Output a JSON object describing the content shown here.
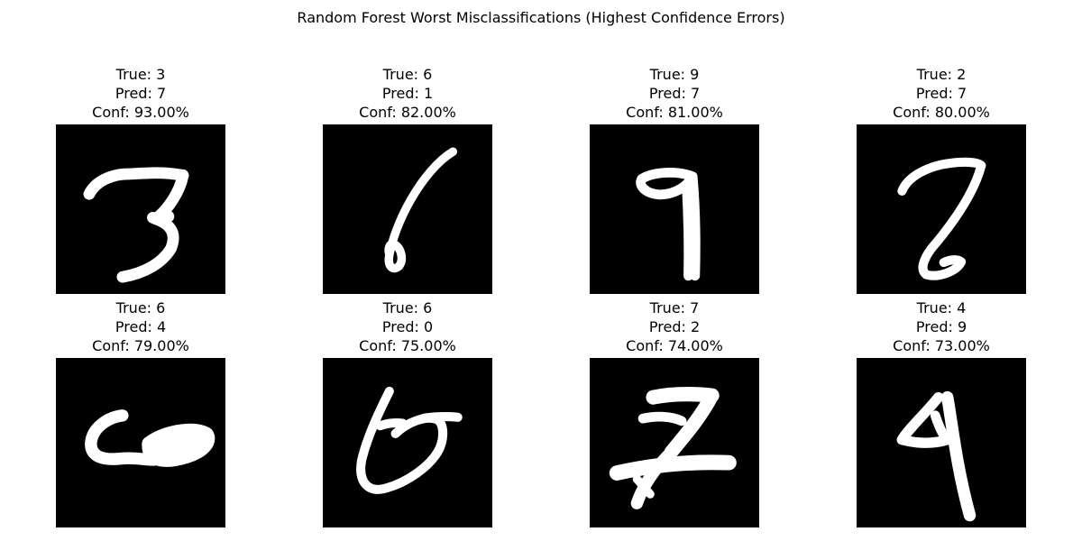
{
  "figure": {
    "title": "Random Forest Worst Misclassifications (Highest Confidence Errors)"
  },
  "samples": [
    {
      "true_label": "True: 3",
      "pred_label": "Pred: 7",
      "conf_label": "Conf: 93.00%",
      "image": "handwritten digit 3"
    },
    {
      "true_label": "True: 6",
      "pred_label": "Pred: 1",
      "conf_label": "Conf: 82.00%",
      "image": "handwritten digit 6"
    },
    {
      "true_label": "True: 9",
      "pred_label": "Pred: 7",
      "conf_label": "Conf: 81.00%",
      "image": "handwritten digit 9"
    },
    {
      "true_label": "True: 2",
      "pred_label": "Pred: 7",
      "conf_label": "Conf: 80.00%",
      "image": "handwritten digit 2"
    },
    {
      "true_label": "True: 6",
      "pred_label": "Pred: 4",
      "conf_label": "Conf: 79.00%",
      "image": "handwritten digit 6"
    },
    {
      "true_label": "True: 6",
      "pred_label": "Pred: 0",
      "conf_label": "Conf: 75.00%",
      "image": "handwritten digit 6"
    },
    {
      "true_label": "True: 7",
      "pred_label": "Pred: 2",
      "conf_label": "Conf: 74.00%",
      "image": "handwritten digit 7"
    },
    {
      "true_label": "True: 4",
      "pred_label": "Pred: 9",
      "conf_label": "Conf: 73.00%",
      "image": "handwritten digit 4"
    }
  ],
  "colors": {
    "background": "#ffffff",
    "image_background": "#000000",
    "stroke": "#ffffff"
  }
}
